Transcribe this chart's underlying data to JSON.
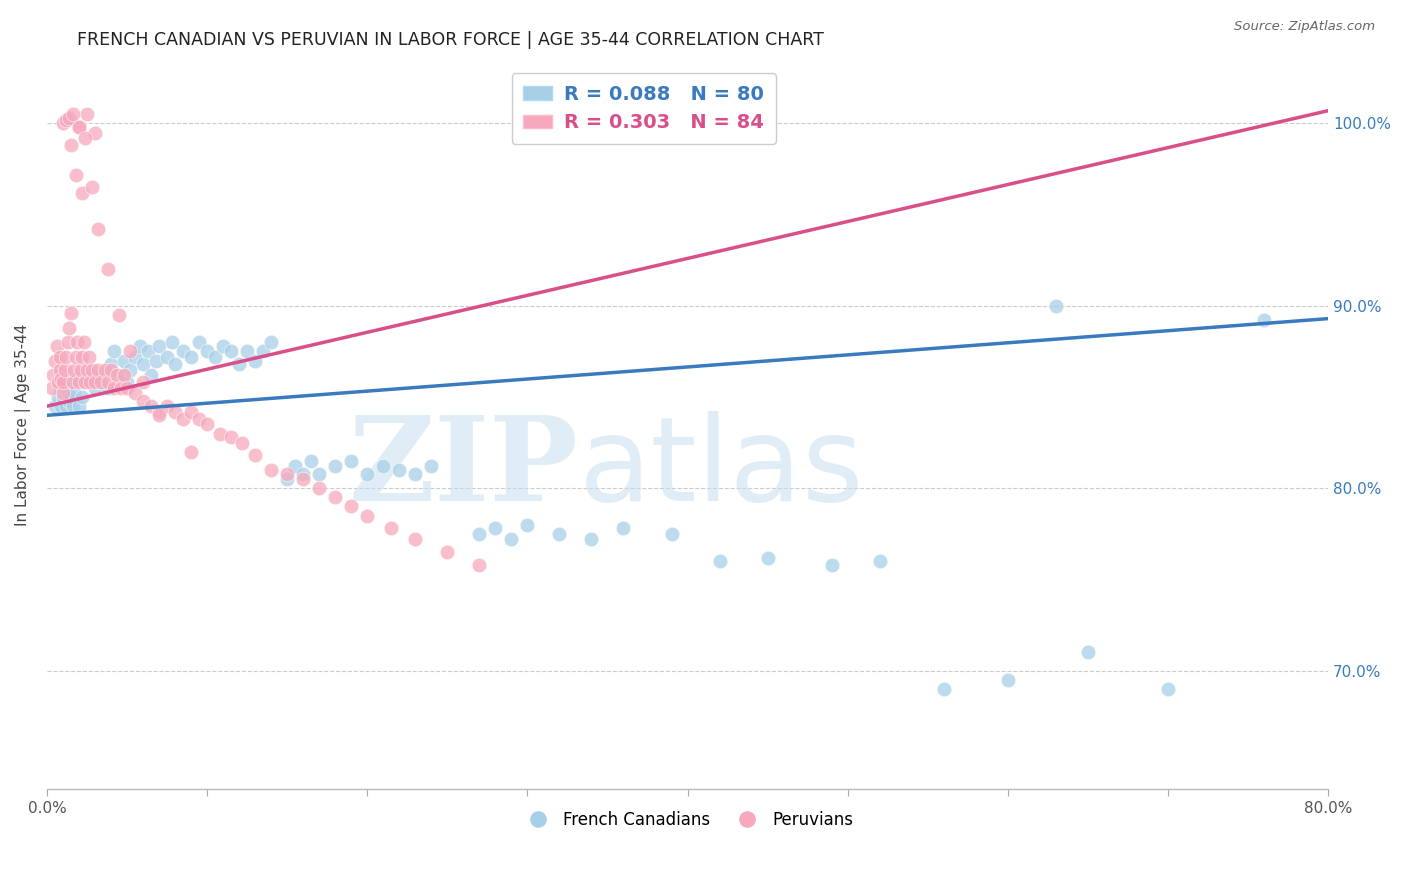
{
  "title": "FRENCH CANADIAN VS PERUVIAN IN LABOR FORCE | AGE 35-44 CORRELATION CHART",
  "source": "Source: ZipAtlas.com",
  "ylabel": "In Labor Force | Age 35-44",
  "xlim": [
    0.0,
    0.8
  ],
  "ylim": [
    0.635,
    1.035
  ],
  "yticks": [
    0.7,
    0.8,
    0.9,
    1.0
  ],
  "ytick_labels": [
    "70.0%",
    "80.0%",
    "90.0%",
    "100.0%"
  ],
  "blue_R": 0.088,
  "blue_N": 80,
  "pink_R": 0.303,
  "pink_N": 84,
  "blue_color": "#a8cfe8",
  "pink_color": "#f7a8bc",
  "blue_line_color": "#3a7bbf",
  "pink_line_color": "#d94f8a",
  "legend_label_blue": "French Canadians",
  "legend_label_pink": "Peruvians",
  "blue_trend_x": [
    0.0,
    0.8
  ],
  "blue_trend_y": [
    0.84,
    0.893
  ],
  "pink_trend_x": [
    0.0,
    0.8
  ],
  "pink_trend_y": [
    0.845,
    1.007
  ],
  "blue_scatter_x": [
    0.005,
    0.007,
    0.008,
    0.009,
    0.01,
    0.01,
    0.012,
    0.013,
    0.014,
    0.015,
    0.015,
    0.016,
    0.017,
    0.018,
    0.02,
    0.022,
    0.025,
    0.028,
    0.03,
    0.032,
    0.035,
    0.038,
    0.04,
    0.042,
    0.045,
    0.048,
    0.05,
    0.052,
    0.055,
    0.058,
    0.06,
    0.063,
    0.065,
    0.068,
    0.07,
    0.075,
    0.078,
    0.08,
    0.085,
    0.09,
    0.095,
    0.1,
    0.105,
    0.11,
    0.115,
    0.12,
    0.125,
    0.13,
    0.135,
    0.14,
    0.15,
    0.155,
    0.16,
    0.165,
    0.17,
    0.18,
    0.19,
    0.2,
    0.21,
    0.22,
    0.23,
    0.24,
    0.27,
    0.28,
    0.29,
    0.3,
    0.32,
    0.34,
    0.36,
    0.39,
    0.42,
    0.45,
    0.49,
    0.52,
    0.56,
    0.6,
    0.63,
    0.65,
    0.7,
    0.76
  ],
  "blue_scatter_y": [
    0.845,
    0.85,
    0.855,
    0.845,
    0.85,
    0.855,
    0.845,
    0.852,
    0.848,
    0.85,
    0.858,
    0.845,
    0.852,
    0.86,
    0.845,
    0.85,
    0.858,
    0.862,
    0.855,
    0.858,
    0.862,
    0.855,
    0.868,
    0.875,
    0.862,
    0.87,
    0.858,
    0.865,
    0.872,
    0.878,
    0.868,
    0.875,
    0.862,
    0.87,
    0.878,
    0.872,
    0.88,
    0.868,
    0.875,
    0.872,
    0.88,
    0.875,
    0.872,
    0.878,
    0.875,
    0.868,
    0.875,
    0.87,
    0.875,
    0.88,
    0.805,
    0.812,
    0.808,
    0.815,
    0.808,
    0.812,
    0.815,
    0.808,
    0.812,
    0.81,
    0.808,
    0.812,
    0.775,
    0.778,
    0.772,
    0.78,
    0.775,
    0.772,
    0.778,
    0.775,
    0.76,
    0.762,
    0.758,
    0.76,
    0.69,
    0.695,
    0.9,
    0.71,
    0.69,
    0.892
  ],
  "pink_scatter_x": [
    0.003,
    0.004,
    0.005,
    0.006,
    0.007,
    0.008,
    0.008,
    0.009,
    0.01,
    0.01,
    0.011,
    0.012,
    0.013,
    0.014,
    0.015,
    0.016,
    0.017,
    0.018,
    0.019,
    0.02,
    0.021,
    0.022,
    0.023,
    0.024,
    0.025,
    0.026,
    0.027,
    0.028,
    0.03,
    0.032,
    0.034,
    0.036,
    0.038,
    0.04,
    0.042,
    0.044,
    0.046,
    0.048,
    0.05,
    0.055,
    0.06,
    0.065,
    0.07,
    0.075,
    0.08,
    0.085,
    0.09,
    0.095,
    0.1,
    0.108,
    0.115,
    0.122,
    0.13,
    0.14,
    0.15,
    0.16,
    0.17,
    0.18,
    0.19,
    0.2,
    0.215,
    0.23,
    0.25,
    0.27,
    0.02,
    0.025,
    0.03,
    0.015,
    0.018,
    0.022,
    0.01,
    0.012,
    0.014,
    0.016,
    0.02,
    0.024,
    0.028,
    0.032,
    0.038,
    0.045,
    0.052,
    0.06,
    0.07,
    0.09
  ],
  "pink_scatter_y": [
    0.855,
    0.862,
    0.87,
    0.878,
    0.858,
    0.865,
    0.872,
    0.86,
    0.852,
    0.858,
    0.865,
    0.872,
    0.88,
    0.888,
    0.896,
    0.858,
    0.865,
    0.872,
    0.88,
    0.858,
    0.865,
    0.872,
    0.88,
    0.858,
    0.865,
    0.872,
    0.858,
    0.865,
    0.858,
    0.865,
    0.858,
    0.865,
    0.858,
    0.865,
    0.855,
    0.862,
    0.855,
    0.862,
    0.855,
    0.852,
    0.848,
    0.845,
    0.842,
    0.845,
    0.842,
    0.838,
    0.842,
    0.838,
    0.835,
    0.83,
    0.828,
    0.825,
    0.818,
    0.81,
    0.808,
    0.805,
    0.8,
    0.795,
    0.79,
    0.785,
    0.778,
    0.772,
    0.765,
    0.758,
    0.998,
    1.005,
    0.995,
    0.988,
    0.972,
    0.962,
    1.0,
    1.002,
    1.003,
    1.005,
    0.998,
    0.992,
    0.965,
    0.942,
    0.92,
    0.895,
    0.875,
    0.858,
    0.84,
    0.82
  ]
}
